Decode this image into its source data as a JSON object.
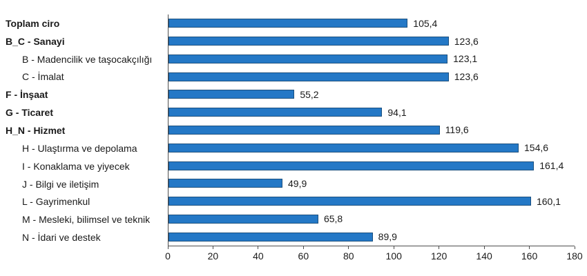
{
  "chart_data": {
    "type": "bar",
    "orientation": "horizontal",
    "title": "",
    "xlabel": "",
    "ylabel": "",
    "xlim": [
      0,
      180
    ],
    "x_ticks": [
      "0",
      "20",
      "40",
      "60",
      "80",
      "100",
      "120",
      "140",
      "160",
      "180"
    ],
    "x_tick_values": [
      0,
      20,
      40,
      60,
      80,
      100,
      120,
      140,
      160,
      180
    ],
    "grid": false,
    "legend": false,
    "bar_color": "#2478c6",
    "bar_border_color": "#1a4f7e",
    "axis_color": "#4d4d4d",
    "text_color": "#1a1a1a",
    "rows": [
      {
        "label": "Toplam ciro",
        "value": 105.4,
        "value_label": "105,4",
        "bold": true,
        "indent": false
      },
      {
        "label": "B_C - Sanayi",
        "value": 123.6,
        "value_label": "123,6",
        "bold": true,
        "indent": false
      },
      {
        "label": "B - Madencilik ve taşocakçılığı",
        "value": 123.1,
        "value_label": "123,1",
        "bold": false,
        "indent": true
      },
      {
        "label": "C - İmalat",
        "value": 123.6,
        "value_label": "123,6",
        "bold": false,
        "indent": true
      },
      {
        "label": "F - İnşaat",
        "value": 55.2,
        "value_label": "55,2",
        "bold": true,
        "indent": false
      },
      {
        "label": "G - Ticaret",
        "value": 94.1,
        "value_label": "94,1",
        "bold": true,
        "indent": false
      },
      {
        "label": "H_N - Hizmet",
        "value": 119.6,
        "value_label": "119,6",
        "bold": true,
        "indent": false
      },
      {
        "label": "H - Ulaştırma ve depolama",
        "value": 154.6,
        "value_label": "154,6",
        "bold": false,
        "indent": true
      },
      {
        "label": "I - Konaklama ve yiyecek",
        "value": 161.4,
        "value_label": "161,4",
        "bold": false,
        "indent": true
      },
      {
        "label": "J - Bilgi ve iletişim",
        "value": 49.9,
        "value_label": "49,9",
        "bold": false,
        "indent": true
      },
      {
        "label": "L - Gayrimenkul",
        "value": 160.1,
        "value_label": "160,1",
        "bold": false,
        "indent": true
      },
      {
        "label": "M - Mesleki, bilimsel ve teknik",
        "value": 65.8,
        "value_label": "65,8",
        "bold": false,
        "indent": true
      },
      {
        "label": "N - İdari ve destek",
        "value": 89.9,
        "value_label": "89,9",
        "bold": false,
        "indent": true
      }
    ]
  }
}
